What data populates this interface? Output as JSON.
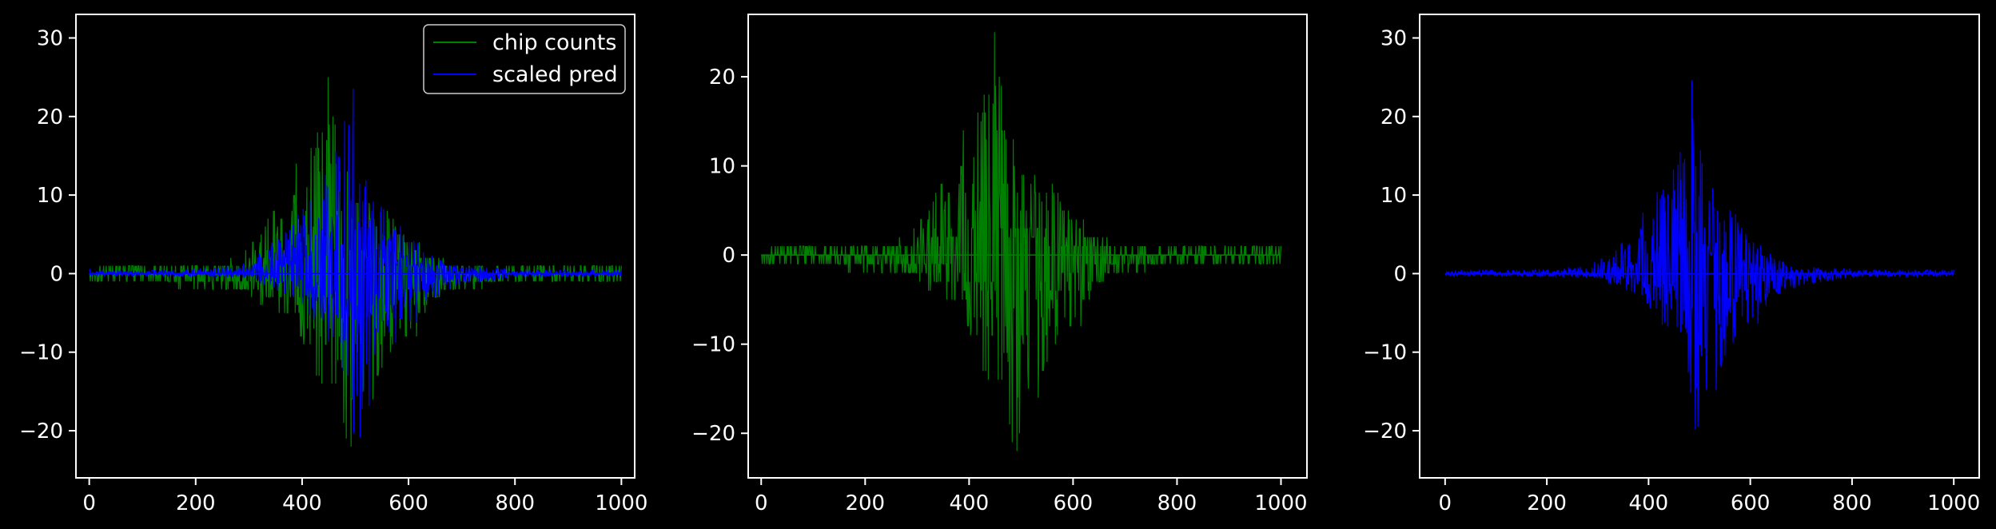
{
  "chart_data": [
    {
      "type": "line",
      "title": "",
      "xlabel": "",
      "ylabel": "",
      "xlim": [
        -25,
        1025
      ],
      "ylim": [
        -26,
        33
      ],
      "xticks": [
        0,
        200,
        400,
        600,
        800,
        1000
      ],
      "yticks": [
        -20,
        -10,
        0,
        10,
        20,
        30
      ],
      "xtick_labels": [
        "0",
        "200",
        "400",
        "600",
        "800",
        "1000"
      ],
      "ytick_labels": [
        "−20",
        "−10",
        "0",
        "10",
        "20",
        "30"
      ],
      "legend": {
        "placement": "top-right",
        "entries": [
          "chip counts",
          "scaled pred"
        ]
      },
      "grid": false,
      "series": [
        {
          "name": "chip counts",
          "color": "#008000",
          "values_pos": [
            [
              0,
              1
            ],
            [
              50,
              1
            ],
            [
              100,
              1
            ],
            [
              150,
              1
            ],
            [
              200,
              1
            ],
            [
              250,
              1
            ],
            [
              300,
              3
            ],
            [
              330,
              8
            ],
            [
              360,
              10
            ],
            [
              390,
              14
            ],
            [
              420,
              17
            ],
            [
              450,
              26
            ],
            [
              470,
              17
            ],
            [
              500,
              12
            ],
            [
              530,
              9
            ],
            [
              560,
              8
            ],
            [
              600,
              5
            ],
            [
              650,
              2
            ],
            [
              700,
              1
            ],
            [
              800,
              1
            ],
            [
              900,
              1
            ],
            [
              1000,
              1
            ]
          ],
          "values_neg": [
            [
              0,
              -1
            ],
            [
              100,
              -1
            ],
            [
              200,
              -2
            ],
            [
              300,
              -3
            ],
            [
              380,
              -6
            ],
            [
              420,
              -12
            ],
            [
              450,
              -19
            ],
            [
              480,
              -22
            ],
            [
              500,
              -23
            ],
            [
              530,
              -17
            ],
            [
              560,
              -14
            ],
            [
              600,
              -10
            ],
            [
              650,
              -4
            ],
            [
              700,
              -2
            ],
            [
              800,
              -1
            ],
            [
              900,
              -1
            ],
            [
              1000,
              -1
            ]
          ]
        },
        {
          "name": "scaled pred",
          "color": "#0000ff",
          "values_pos": [
            [
              0,
              0.5
            ],
            [
              100,
              0.4
            ],
            [
              200,
              0.6
            ],
            [
              280,
              1
            ],
            [
              330,
              3
            ],
            [
              370,
              6
            ],
            [
              410,
              10
            ],
            [
              450,
              14
            ],
            [
              470,
              18
            ],
            [
              490,
              30
            ],
            [
              510,
              14
            ],
            [
              540,
              9
            ],
            [
              570,
              8
            ],
            [
              600,
              5
            ],
            [
              650,
              2
            ],
            [
              700,
              1
            ],
            [
              800,
              0.6
            ],
            [
              900,
              0.5
            ],
            [
              1000,
              0.5
            ]
          ],
          "values_neg": [
            [
              0,
              -0.3
            ],
            [
              200,
              -0.4
            ],
            [
              300,
              -0.6
            ],
            [
              380,
              -3
            ],
            [
              420,
              -6
            ],
            [
              460,
              -10
            ],
            [
              480,
              -15
            ],
            [
              500,
              -24
            ],
            [
              530,
              -16
            ],
            [
              560,
              -12
            ],
            [
              600,
              -8
            ],
            [
              650,
              -3
            ],
            [
              700,
              -1.5
            ],
            [
              800,
              -0.5
            ],
            [
              1000,
              -0.3
            ]
          ]
        }
      ]
    },
    {
      "type": "line",
      "title": "",
      "xlabel": "",
      "ylabel": "",
      "xlim": [
        -25,
        1050
      ],
      "ylim": [
        -25,
        27
      ],
      "xticks": [
        0,
        200,
        400,
        600,
        800,
        1000
      ],
      "yticks": [
        -20,
        -10,
        0,
        10,
        20
      ],
      "xtick_labels": [
        "0",
        "200",
        "400",
        "600",
        "800",
        "1000"
      ],
      "ytick_labels": [
        "−20",
        "−10",
        "0",
        "10",
        "20"
      ],
      "grid": false,
      "series": [
        {
          "name": "chip counts",
          "color": "#008000",
          "values_pos": [
            [
              0,
              1
            ],
            [
              50,
              1
            ],
            [
              100,
              1
            ],
            [
              150,
              1
            ],
            [
              200,
              1
            ],
            [
              250,
              1
            ],
            [
              300,
              3
            ],
            [
              330,
              8
            ],
            [
              360,
              10
            ],
            [
              390,
              14
            ],
            [
              420,
              17
            ],
            [
              450,
              26
            ],
            [
              470,
              17
            ],
            [
              500,
              12
            ],
            [
              530,
              9
            ],
            [
              560,
              8
            ],
            [
              600,
              5
            ],
            [
              650,
              2
            ],
            [
              700,
              1
            ],
            [
              800,
              1
            ],
            [
              900,
              1
            ],
            [
              1000,
              1
            ]
          ],
          "values_neg": [
            [
              0,
              -1
            ],
            [
              100,
              -1
            ],
            [
              200,
              -2
            ],
            [
              300,
              -3
            ],
            [
              380,
              -6
            ],
            [
              420,
              -12
            ],
            [
              450,
              -19
            ],
            [
              480,
              -22
            ],
            [
              500,
              -23
            ],
            [
              530,
              -17
            ],
            [
              560,
              -14
            ],
            [
              600,
              -10
            ],
            [
              650,
              -4
            ],
            [
              700,
              -2
            ],
            [
              800,
              -1
            ],
            [
              900,
              -1
            ],
            [
              1000,
              -1
            ]
          ]
        }
      ]
    },
    {
      "type": "line",
      "title": "",
      "xlabel": "",
      "ylabel": "",
      "xlim": [
        -50,
        1050
      ],
      "ylim": [
        -26,
        33
      ],
      "xticks": [
        0,
        200,
        400,
        600,
        800,
        1000
      ],
      "yticks": [
        -20,
        -10,
        0,
        10,
        20,
        30
      ],
      "xtick_labels": [
        "0",
        "200",
        "400",
        "600",
        "800",
        "1000"
      ],
      "ytick_labels": [
        "−20",
        "−10",
        "0",
        "10",
        "20",
        "30"
      ],
      "grid": false,
      "series": [
        {
          "name": "scaled pred",
          "color": "#0000ff",
          "values_pos": [
            [
              0,
              0.5
            ],
            [
              100,
              0.4
            ],
            [
              200,
              0.6
            ],
            [
              280,
              1
            ],
            [
              330,
              3
            ],
            [
              370,
              6
            ],
            [
              410,
              10
            ],
            [
              450,
              14
            ],
            [
              470,
              18
            ],
            [
              490,
              30
            ],
            [
              510,
              14
            ],
            [
              540,
              9
            ],
            [
              570,
              8
            ],
            [
              600,
              5
            ],
            [
              650,
              2
            ],
            [
              700,
              1
            ],
            [
              800,
              0.6
            ],
            [
              900,
              0.5
            ],
            [
              1000,
              0.5
            ]
          ],
          "values_neg": [
            [
              0,
              -0.3
            ],
            [
              200,
              -0.4
            ],
            [
              300,
              -0.6
            ],
            [
              380,
              -3
            ],
            [
              420,
              -6
            ],
            [
              460,
              -10
            ],
            [
              480,
              -15
            ],
            [
              500,
              -24
            ],
            [
              530,
              -16
            ],
            [
              560,
              -12
            ],
            [
              600,
              -8
            ],
            [
              650,
              -3
            ],
            [
              700,
              -1.5
            ],
            [
              800,
              -0.5
            ],
            [
              1000,
              -0.3
            ]
          ]
        }
      ]
    }
  ]
}
